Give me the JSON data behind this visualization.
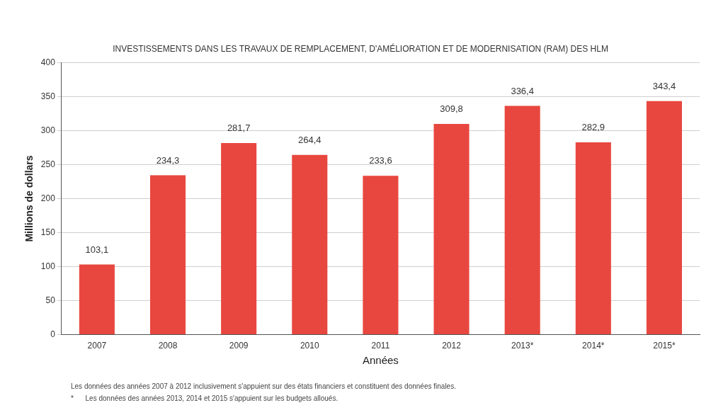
{
  "chart_data": {
    "type": "bar",
    "title": "INVESTISSEMENTS DANS LES TRAVAUX DE REMPLACEMENT, D'AMÉLIORATION ET DE MODERNISATION (RAM) DES HLM",
    "xlabel": "Années",
    "ylabel": "Millions de dollars",
    "categories": [
      "2007",
      "2008",
      "2009",
      "2010",
      "2011",
      "2012",
      "2013*",
      "2014*",
      "2015*"
    ],
    "values": [
      103.1,
      234.3,
      281.7,
      264.4,
      233.6,
      309.8,
      336.4,
      282.9,
      343.4
    ],
    "value_labels": [
      "103,1",
      "234,3",
      "281,7",
      "264,4",
      "233,6",
      "309,8",
      "336,4",
      "282,9",
      "343,4"
    ],
    "color": "#e8473f",
    "ylim": [
      0,
      400
    ],
    "yticks": [
      0,
      50,
      100,
      150,
      200,
      250,
      300,
      350,
      400
    ],
    "grid": "y",
    "annotations": [
      "Les données des années 2007 à 2012 inclusivement s'appuient sur des états financiers et constituent des données finales.",
      "*      Les données des années 2013, 2014 et 2015 s'appuient sur les budgets alloués."
    ]
  }
}
